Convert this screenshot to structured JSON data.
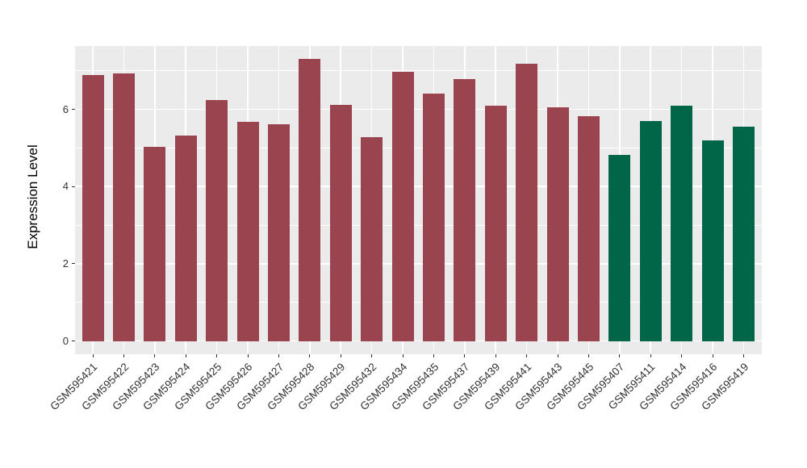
{
  "chart_data": {
    "type": "bar",
    "title": "",
    "xlabel": "",
    "ylabel": "Expression Level",
    "legend_position": "none",
    "grid": true,
    "panel_bg": "#EBEBEB",
    "grid_color": "#FFFFFF",
    "tick_color": "#333333",
    "categories": [
      "GSM595421",
      "GSM595422",
      "GSM595423",
      "GSM595424",
      "GSM595425",
      "GSM595426",
      "GSM595427",
      "GSM595428",
      "GSM595429",
      "GSM595432",
      "GSM595434",
      "GSM595435",
      "GSM595437",
      "GSM595439",
      "GSM595441",
      "GSM595443",
      "GSM595445",
      "GSM595407",
      "GSM595411",
      "GSM595414",
      "GSM595416",
      "GSM595419"
    ],
    "values": [
      6.88,
      6.94,
      5.03,
      5.32,
      6.23,
      5.68,
      5.61,
      7.3,
      6.12,
      5.28,
      6.97,
      6.41,
      6.78,
      6.1,
      7.17,
      6.05,
      5.82,
      4.83,
      5.69,
      6.1,
      5.19,
      5.56
    ],
    "bar_groups": [
      "maroon",
      "maroon",
      "maroon",
      "maroon",
      "maroon",
      "maroon",
      "maroon",
      "maroon",
      "maroon",
      "maroon",
      "maroon",
      "maroon",
      "maroon",
      "maroon",
      "maroon",
      "maroon",
      "maroon",
      "green",
      "green",
      "green",
      "green",
      "green"
    ],
    "palette": {
      "maroon": "#9A4450",
      "green": "#006647"
    },
    "yticks": [
      0,
      2,
      4,
      6
    ],
    "yticks_minor": [
      1,
      3,
      5,
      7
    ],
    "ylim": [
      -0.34,
      7.64
    ]
  }
}
